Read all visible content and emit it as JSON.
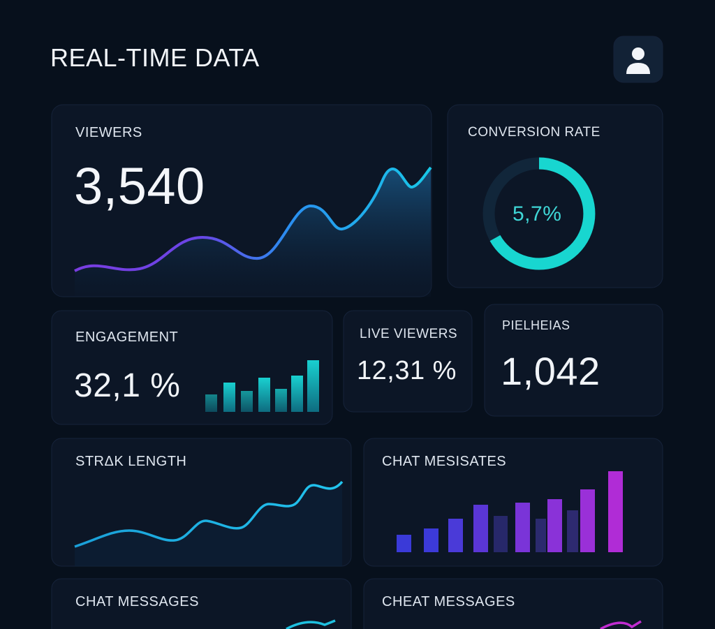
{
  "header": {
    "title": "REAL-TIME DATA"
  },
  "cards": [
    {
      "label": "VIEWERS",
      "value": "3,540"
    },
    {
      "label": "CONVERSION RATE",
      "value": "5,7%"
    },
    {
      "label": "ENGAGEMENT",
      "value": "32,1 %"
    },
    {
      "label": "LIVE VIEWERS",
      "value": "12,31 %"
    },
    {
      "label": "PIELHEIAS",
      "value": "1,042"
    },
    {
      "label": "STRΔK LENGTH"
    },
    {
      "label": "CHAT MESISATES"
    },
    {
      "label": "CHAT MESSAGES"
    },
    {
      "label": "CHEAT MESSAGES"
    }
  ]
}
